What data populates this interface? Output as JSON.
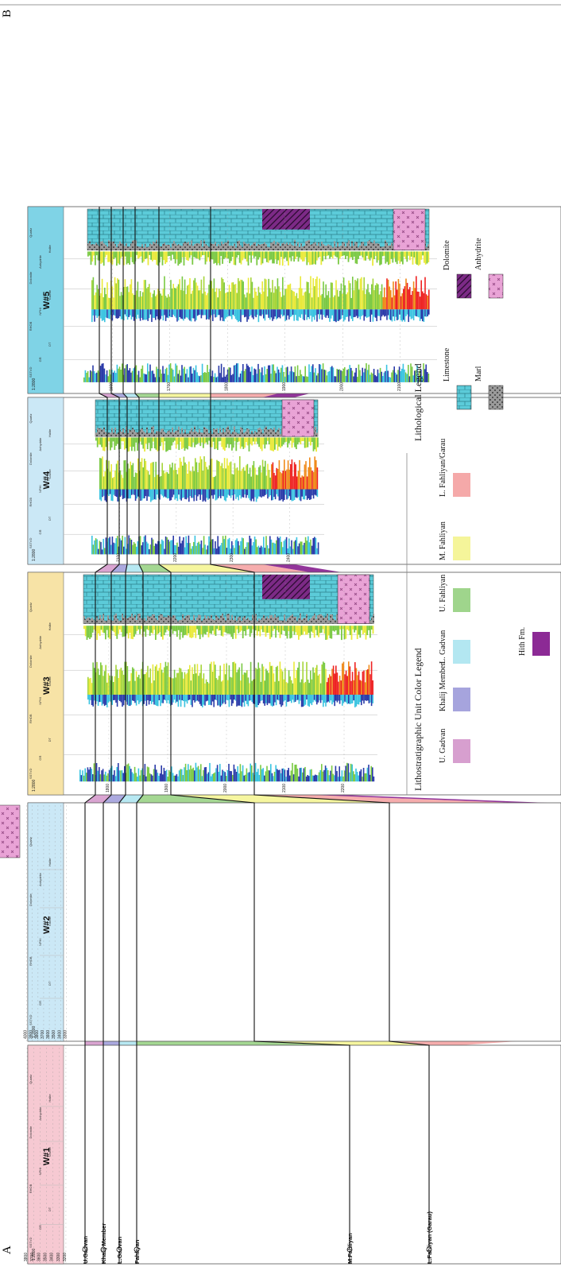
{
  "corner_labels": {
    "a": "A",
    "b": "B"
  },
  "colors": {
    "u_gadvan": "#d79fcf",
    "khalij": "#a6a4dd",
    "l_gadvan": "#b3e7f1",
    "u_fahliyan": "#9fd58c",
    "m_fahliyan": "#f5f59a",
    "l_fahliyan": "#f5a9a9",
    "hith": "#8c2a95",
    "limestone": "#5ccbd9",
    "marl": "#9a9a9a",
    "anhydrite": "#e9a3d6",
    "dolomite": "#7c2a86",
    "log_blue": "#2a3aa8",
    "log_green": "#7ac943",
    "log_yellow": "#e9e93a",
    "log_cyan": "#39c3e0",
    "log_red": "#ee2222",
    "header_w1": "#f6c9d2",
    "header_w2": "#cbe8f6",
    "header_w3": "#f7e3a6",
    "header_w4": "#cbe8f6",
    "header_w5": "#7fd3e6"
  },
  "formation_tops": [
    "U.Gadvan",
    "Khalij Member",
    "L.Gadvan",
    "Fahliyan",
    "M.Fahliyan",
    "L.Fahliyan (Garau)"
  ],
  "log_track_headers": [
    "SSTVD",
    "GR",
    "DT",
    "RHOB",
    "NPHI",
    "Calcite",
    "Dolomite",
    "Anhydrite",
    "Halite",
    "Quartz"
  ],
  "wells": [
    {
      "name": "W#1",
      "scale": "1:2800",
      "depths": [
        "3200",
        "3300",
        "3400",
        "3500",
        "3600",
        "3700",
        "3800"
      ]
    },
    {
      "name": "W#2",
      "scale": "1:2800",
      "depths": [
        "3300",
        "3400",
        "3500",
        "3600",
        "3700",
        "3800",
        "3900",
        "4000"
      ]
    },
    {
      "name": "W#3",
      "scale": "1:2800",
      "depths": [
        "1800",
        "1900",
        "2000",
        "2100",
        "2200"
      ]
    },
    {
      "name": "W#4",
      "scale": "1:2800",
      "depths": [
        "2100",
        "2200",
        "2300",
        "2400"
      ]
    },
    {
      "name": "W#5",
      "scale": "1:2800",
      "depths": [
        "1600",
        "1700",
        "1800",
        "1900",
        "2000",
        "2100"
      ]
    }
  ],
  "unit_legend": {
    "title": "Lithostratigraphic Unit Color Legend",
    "items": [
      "U. Gadvan",
      "Khalij Member",
      "L. Gadvan",
      "Hith Fm.",
      "U. Fahliyan",
      "M. Fahliyan",
      "L. Fahliyan/Garau"
    ]
  },
  "litho_legend": {
    "title": "Lithological Legend",
    "items": [
      "Limestone",
      "Marl",
      "Dolomite",
      "Anhydrite"
    ]
  }
}
